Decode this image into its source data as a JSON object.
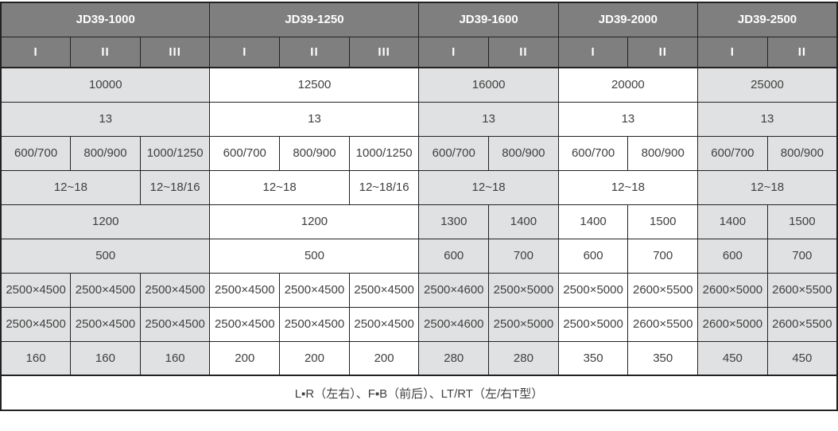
{
  "table": {
    "colors": {
      "header_bg": "#7f7f7f",
      "header_text": "#ffffff",
      "shade_gray": "#e0e1e2",
      "shade_white": "#ffffff",
      "border": "#222222",
      "body_text": "#404040"
    },
    "column_count": 12,
    "groups": [
      {
        "label": "JD39-1000",
        "span": 3,
        "subcols": [
          "I",
          "II",
          "III"
        ],
        "shade": "gray"
      },
      {
        "label": "JD39-1250",
        "span": 3,
        "subcols": [
          "I",
          "II",
          "III"
        ],
        "shade": "white"
      },
      {
        "label": "JD39-1600",
        "span": 2,
        "subcols": [
          "I",
          "II"
        ],
        "shade": "gray"
      },
      {
        "label": "JD39-2000",
        "span": 2,
        "subcols": [
          "I",
          "II"
        ],
        "shade": "white"
      },
      {
        "label": "JD39-2500",
        "span": 2,
        "subcols": [
          "I",
          "II"
        ],
        "shade": "gray"
      }
    ],
    "body_rows": [
      {
        "cells": [
          {
            "text": "10000",
            "span": 3
          },
          {
            "text": "12500",
            "span": 3
          },
          {
            "text": "16000",
            "span": 2
          },
          {
            "text": "20000",
            "span": 2
          },
          {
            "text": "25000",
            "span": 2
          }
        ]
      },
      {
        "cells": [
          {
            "text": "13",
            "span": 3
          },
          {
            "text": "13",
            "span": 3
          },
          {
            "text": "13",
            "span": 2
          },
          {
            "text": "13",
            "span": 2
          },
          {
            "text": "13",
            "span": 2
          }
        ]
      },
      {
        "cells": [
          {
            "text": "600/700",
            "span": 1
          },
          {
            "text": "800/900",
            "span": 1
          },
          {
            "text": "1000/1250",
            "span": 1
          },
          {
            "text": "600/700",
            "span": 1
          },
          {
            "text": "800/900",
            "span": 1
          },
          {
            "text": "1000/1250",
            "span": 1
          },
          {
            "text": "600/700",
            "span": 1
          },
          {
            "text": "800/900",
            "span": 1
          },
          {
            "text": "600/700",
            "span": 1
          },
          {
            "text": "800/900",
            "span": 1
          },
          {
            "text": "600/700",
            "span": 1
          },
          {
            "text": "800/900",
            "span": 1
          }
        ]
      },
      {
        "cells": [
          {
            "text": "12~18",
            "span": 2
          },
          {
            "text": "12~18/16",
            "span": 1
          },
          {
            "text": "12~18",
            "span": 2
          },
          {
            "text": "12~18/16",
            "span": 1
          },
          {
            "text": "12~18",
            "span": 2
          },
          {
            "text": "12~18",
            "span": 2
          },
          {
            "text": "12~18",
            "span": 2
          }
        ]
      },
      {
        "cells": [
          {
            "text": "1200",
            "span": 3
          },
          {
            "text": "1200",
            "span": 3
          },
          {
            "text": "1300",
            "span": 1
          },
          {
            "text": "1400",
            "span": 1
          },
          {
            "text": "1400",
            "span": 1
          },
          {
            "text": "1500",
            "span": 1
          },
          {
            "text": "1400",
            "span": 1
          },
          {
            "text": "1500",
            "span": 1
          }
        ]
      },
      {
        "cells": [
          {
            "text": "500",
            "span": 3
          },
          {
            "text": "500",
            "span": 3
          },
          {
            "text": "600",
            "span": 1
          },
          {
            "text": "700",
            "span": 1
          },
          {
            "text": "600",
            "span": 1
          },
          {
            "text": "700",
            "span": 1
          },
          {
            "text": "600",
            "span": 1
          },
          {
            "text": "700",
            "span": 1
          }
        ]
      },
      {
        "cells": [
          {
            "text": "2500×4500",
            "span": 1
          },
          {
            "text": "2500×4500",
            "span": 1
          },
          {
            "text": "2500×4500",
            "span": 1
          },
          {
            "text": "2500×4500",
            "span": 1
          },
          {
            "text": "2500×4500",
            "span": 1
          },
          {
            "text": "2500×4500",
            "span": 1
          },
          {
            "text": "2500×4600",
            "span": 1
          },
          {
            "text": "2500×5000",
            "span": 1
          },
          {
            "text": "2500×5000",
            "span": 1
          },
          {
            "text": "2600×5500",
            "span": 1
          },
          {
            "text": "2600×5000",
            "span": 1
          },
          {
            "text": "2600×5500",
            "span": 1
          }
        ]
      },
      {
        "cells": [
          {
            "text": "2500×4500",
            "span": 1
          },
          {
            "text": "2500×4500",
            "span": 1
          },
          {
            "text": "2500×4500",
            "span": 1
          },
          {
            "text": "2500×4500",
            "span": 1
          },
          {
            "text": "2500×4500",
            "span": 1
          },
          {
            "text": "2500×4500",
            "span": 1
          },
          {
            "text": "2500×4600",
            "span": 1
          },
          {
            "text": "2500×5000",
            "span": 1
          },
          {
            "text": "2500×5000",
            "span": 1
          },
          {
            "text": "2600×5500",
            "span": 1
          },
          {
            "text": "2600×5000",
            "span": 1
          },
          {
            "text": "2600×5500",
            "span": 1
          }
        ]
      },
      {
        "cells": [
          {
            "text": "160",
            "span": 1
          },
          {
            "text": "160",
            "span": 1
          },
          {
            "text": "160",
            "span": 1
          },
          {
            "text": "200",
            "span": 1
          },
          {
            "text": "200",
            "span": 1
          },
          {
            "text": "200",
            "span": 1
          },
          {
            "text": "280",
            "span": 1
          },
          {
            "text": "280",
            "span": 1
          },
          {
            "text": "350",
            "span": 1
          },
          {
            "text": "350",
            "span": 1
          },
          {
            "text": "450",
            "span": 1
          },
          {
            "text": "450",
            "span": 1
          }
        ]
      }
    ],
    "footer": {
      "text": "L▪R（左右）、F▪B（前后）、LT/RT（左/右T型）"
    }
  }
}
